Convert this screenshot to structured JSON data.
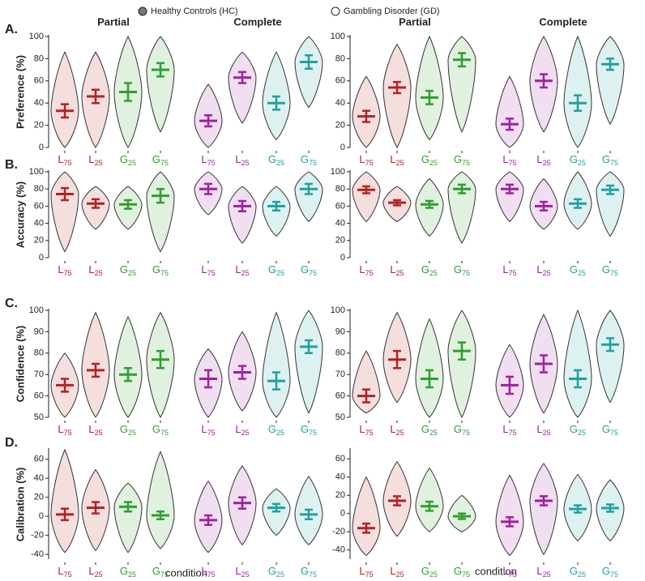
{
  "legend": [
    {
      "name": "Healthy Controls (HC)",
      "marker": "#777777"
    },
    {
      "name": "Gambling Disorder (GD)",
      "marker": "#ffffff"
    }
  ],
  "panel_titles": [
    "Partial",
    "Complete",
    "Partial",
    "Complete"
  ],
  "xlabel": "condition",
  "categories": [
    {
      "base": "L",
      "sub": "75",
      "color": "#b22222"
    },
    {
      "base": "L",
      "sub": "25",
      "color": "#b22222"
    },
    {
      "base": "G",
      "sub": "25",
      "color": "#2ca02c"
    },
    {
      "base": "G",
      "sub": "75",
      "color": "#2ca02c"
    },
    {
      "base": "L",
      "sub": "75",
      "color": "#a020a0"
    },
    {
      "base": "L",
      "sub": "25",
      "color": "#a020a0"
    },
    {
      "base": "G",
      "sub": "25",
      "color": "#20a0a0"
    },
    {
      "base": "G",
      "sub": "75",
      "color": "#20a0a0"
    }
  ],
  "chart_data": [
    {
      "type": "violin",
      "label": "A.",
      "ylabel": "Preference (%)",
      "ylim": [
        0,
        100
      ],
      "yticks": [
        0,
        20,
        40,
        60,
        80,
        100
      ],
      "violins": [
        {
          "mean": 33,
          "se": 6,
          "min": 0,
          "max": 86
        },
        {
          "mean": 46,
          "se": 6,
          "min": 0,
          "max": 86
        },
        {
          "mean": 50,
          "se": 8,
          "min": 0,
          "max": 100
        },
        {
          "mean": 70,
          "se": 6,
          "min": 14,
          "max": 100
        },
        {
          "mean": 24,
          "se": 5,
          "min": 0,
          "max": 57
        },
        {
          "mean": 63,
          "se": 5,
          "min": 22,
          "max": 86
        },
        {
          "mean": 40,
          "se": 6,
          "min": 7,
          "max": 86
        },
        {
          "mean": 77,
          "se": 6,
          "min": 36,
          "max": 100
        }
      ]
    },
    {
      "type": "violin",
      "ylim": [
        0,
        100
      ],
      "yticks": [
        0,
        20,
        40,
        60,
        80,
        100
      ],
      "violins": [
        {
          "mean": 28,
          "se": 5,
          "min": 0,
          "max": 64
        },
        {
          "mean": 54,
          "se": 5,
          "min": 0,
          "max": 93
        },
        {
          "mean": 45,
          "se": 6,
          "min": 7,
          "max": 100
        },
        {
          "mean": 79,
          "se": 6,
          "min": 14,
          "max": 100
        },
        {
          "mean": 21,
          "se": 5,
          "min": 0,
          "max": 64
        },
        {
          "mean": 60,
          "se": 6,
          "min": 14,
          "max": 100
        },
        {
          "mean": 40,
          "se": 7,
          "min": 0,
          "max": 100
        },
        {
          "mean": 75,
          "se": 5,
          "min": 21,
          "max": 100
        }
      ]
    },
    {
      "type": "violin",
      "label": "B.",
      "ylabel": "Accuracy (%)",
      "ylim": [
        0,
        100
      ],
      "yticks": [
        0,
        20,
        40,
        60,
        80,
        100
      ],
      "violins": [
        {
          "mean": 74,
          "se": 7,
          "min": 7,
          "max": 100
        },
        {
          "mean": 63,
          "se": 5,
          "min": 33,
          "max": 83
        },
        {
          "mean": 62,
          "se": 5,
          "min": 33,
          "max": 83
        },
        {
          "mean": 72,
          "se": 8,
          "min": 7,
          "max": 100
        },
        {
          "mean": 80,
          "se": 6,
          "min": 50,
          "max": 100
        },
        {
          "mean": 60,
          "se": 6,
          "min": 17,
          "max": 83
        },
        {
          "mean": 60,
          "se": 5,
          "min": 25,
          "max": 83
        },
        {
          "mean": 80,
          "se": 6,
          "min": 42,
          "max": 100
        }
      ]
    },
    {
      "type": "violin",
      "ylim": [
        0,
        100
      ],
      "yticks": [
        0,
        20,
        40,
        60,
        80,
        100
      ],
      "violins": [
        {
          "mean": 79,
          "se": 4,
          "min": 42,
          "max": 100
        },
        {
          "mean": 64,
          "se": 3,
          "min": 42,
          "max": 83
        },
        {
          "mean": 62,
          "se": 4,
          "min": 25,
          "max": 92
        },
        {
          "mean": 80,
          "se": 5,
          "min": 17,
          "max": 100
        },
        {
          "mean": 80,
          "se": 5,
          "min": 42,
          "max": 100
        },
        {
          "mean": 60,
          "se": 5,
          "min": 33,
          "max": 92
        },
        {
          "mean": 63,
          "se": 5,
          "min": 33,
          "max": 100
        },
        {
          "mean": 79,
          "se": 5,
          "min": 25,
          "max": 100
        }
      ]
    },
    {
      "type": "violin",
      "label": "C.",
      "ylabel": "Confidence (%)",
      "ylim": [
        50,
        100
      ],
      "yticks": [
        50,
        60,
        70,
        80,
        90,
        100
      ],
      "violins": [
        {
          "mean": 65,
          "se": 3,
          "min": 50,
          "max": 80
        },
        {
          "mean": 72,
          "se": 3,
          "min": 50,
          "max": 99
        },
        {
          "mean": 70,
          "se": 3,
          "min": 50,
          "max": 97
        },
        {
          "mean": 77,
          "se": 4,
          "min": 50,
          "max": 99
        },
        {
          "mean": 68,
          "se": 4,
          "min": 50,
          "max": 82
        },
        {
          "mean": 71,
          "se": 3,
          "min": 53,
          "max": 90
        },
        {
          "mean": 67,
          "se": 4,
          "min": 50,
          "max": 99
        },
        {
          "mean": 83,
          "se": 3,
          "min": 52,
          "max": 100
        }
      ]
    },
    {
      "type": "violin",
      "ylim": [
        50,
        100
      ],
      "yticks": [
        50,
        60,
        70,
        80,
        90,
        100
      ],
      "violins": [
        {
          "mean": 60,
          "se": 3,
          "min": 52,
          "max": 81
        },
        {
          "mean": 77,
          "se": 4,
          "min": 57,
          "max": 99
        },
        {
          "mean": 68,
          "se": 4,
          "min": 50,
          "max": 96
        },
        {
          "mean": 81,
          "se": 4,
          "min": 50,
          "max": 100
        },
        {
          "mean": 65,
          "se": 4,
          "min": 50,
          "max": 84
        },
        {
          "mean": 75,
          "se": 4,
          "min": 52,
          "max": 98
        },
        {
          "mean": 68,
          "se": 4,
          "min": 50,
          "max": 100
        },
        {
          "mean": 84,
          "se": 3,
          "min": 57,
          "max": 100
        }
      ]
    },
    {
      "type": "violin",
      "label": "D.",
      "ylabel": "Calibration (%)",
      "ylim": [
        -45,
        70
      ],
      "yticks": [
        -40,
        -20,
        0,
        20,
        40,
        60
      ],
      "violins": [
        {
          "mean": 2,
          "se": 6,
          "min": -38,
          "max": 70
        },
        {
          "mean": 9,
          "se": 6,
          "min": -36,
          "max": 49
        },
        {
          "mean": 10,
          "se": 5,
          "min": -38,
          "max": 35
        },
        {
          "mean": 1,
          "se": 4,
          "min": -34,
          "max": 68
        },
        {
          "mean": -4,
          "se": 5,
          "min": -38,
          "max": 37
        },
        {
          "mean": 14,
          "se": 6,
          "min": -30,
          "max": 53
        },
        {
          "mean": 9,
          "se": 4,
          "min": -20,
          "max": 29
        },
        {
          "mean": 2,
          "se": 5,
          "min": -30,
          "max": 42
        }
      ]
    },
    {
      "type": "violin",
      "ylim": [
        -50,
        70
      ],
      "yticks": [
        -40,
        -20,
        0,
        20,
        40,
        60
      ],
      "violins": [
        {
          "mean": -16,
          "se": 5,
          "min": -46,
          "max": 40
        },
        {
          "mean": 14,
          "se": 5,
          "min": -25,
          "max": 57
        },
        {
          "mean": 8,
          "se": 5,
          "min": -20,
          "max": 50
        },
        {
          "mean": -3,
          "se": 3,
          "min": -20,
          "max": 20
        },
        {
          "mean": -9,
          "se": 5,
          "min": -46,
          "max": 42
        },
        {
          "mean": 14,
          "se": 5,
          "min": -45,
          "max": 55
        },
        {
          "mean": 5,
          "se": 4,
          "min": -30,
          "max": 43
        },
        {
          "mean": 6,
          "se": 4,
          "min": -30,
          "max": 37
        }
      ]
    }
  ]
}
